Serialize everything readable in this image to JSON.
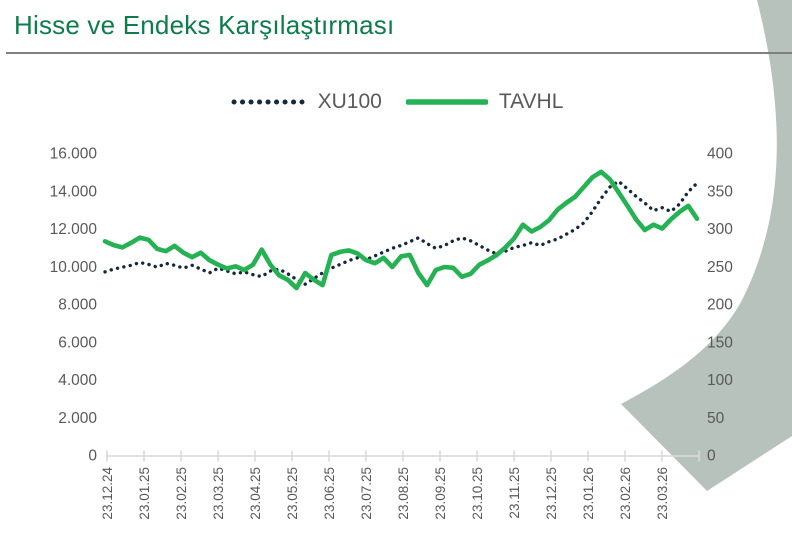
{
  "header": {
    "title": "Hisse ve Endeks Karşılaştırması"
  },
  "legend": {
    "items": [
      {
        "label": "XU100",
        "style": "dotted"
      },
      {
        "label": "TAVHL",
        "style": "solid"
      }
    ]
  },
  "colors": {
    "title_green": "#0e7c4b",
    "rule_gray": "#7f7f7f",
    "text_gray": "#595959",
    "axis_gray": "#d9d9d9",
    "xu100_navy": "#15293c",
    "tavhl_green": "#24b252",
    "swoosh_sage": "#b6c2bb"
  },
  "chart_data": {
    "type": "line",
    "title": "Hisse ve Endeks Karşılaştırması",
    "grid": false,
    "legend_position": "top",
    "x_tick_labels": [
      "23.12.24",
      "23.01.25",
      "23.02.25",
      "23.03.25",
      "23.04.25",
      "23.05.25",
      "23.06.25",
      "23.07.25",
      "23.08.25",
      "23.09.25",
      "23.10.25",
      "23.11.25",
      "23.12.25",
      "23.01.26",
      "23.02.26",
      "23.03.26"
    ],
    "left_axis": {
      "min": 0,
      "max": 16000,
      "step": 2000,
      "tick_labels": [
        "16.000",
        "14.000",
        "12.000",
        "10.000",
        "8.000",
        "6.000",
        "4.000",
        "2.000",
        "0"
      ]
    },
    "right_axis": {
      "min": 0,
      "max": 400,
      "step": 50,
      "tick_labels": [
        "400",
        "350",
        "300",
        "250",
        "200",
        "150",
        "100",
        "50",
        "0"
      ]
    },
    "series": [
      {
        "name": "XU100",
        "axis": "left",
        "style": "dotted",
        "color": "#15293c",
        "values": [
          9700,
          9850,
          9950,
          10050,
          10200,
          10100,
          9950,
          10150,
          10050,
          9900,
          10050,
          9850,
          9650,
          9900,
          9750,
          9600,
          9700,
          9550,
          9450,
          9750,
          9850,
          9600,
          9300,
          9050,
          9350,
          9650,
          9900,
          10100,
          10300,
          10450,
          10350,
          10550,
          10750,
          10950,
          11100,
          11300,
          11500,
          11200,
          10950,
          11100,
          11350,
          11500,
          11350,
          11100,
          10850,
          10650,
          10800,
          11000,
          11100,
          11250,
          11100,
          11300,
          11450,
          11700,
          11950,
          12300,
          12900,
          13600,
          14200,
          14500,
          14100,
          13700,
          13350,
          12950,
          13100,
          12900,
          13300,
          13950,
          14400
        ]
      },
      {
        "name": "TAVHL",
        "axis": "right",
        "style": "solid",
        "color": "#24b252",
        "values": [
          283,
          278,
          275,
          281,
          288,
          285,
          273,
          270,
          277,
          268,
          262,
          268,
          258,
          252,
          247,
          250,
          245,
          252,
          272,
          252,
          238,
          232,
          221,
          241,
          232,
          225,
          265,
          269,
          271,
          267,
          258,
          254,
          261,
          249,
          263,
          265,
          241,
          225,
          245,
          249,
          248,
          236,
          240,
          252,
          258,
          265,
          275,
          287,
          305,
          296,
          302,
          311,
          325,
          334,
          342,
          355,
          368,
          375,
          365,
          348,
          330,
          312,
          298,
          305,
          300,
          312,
          322,
          330,
          313
        ]
      }
    ]
  }
}
